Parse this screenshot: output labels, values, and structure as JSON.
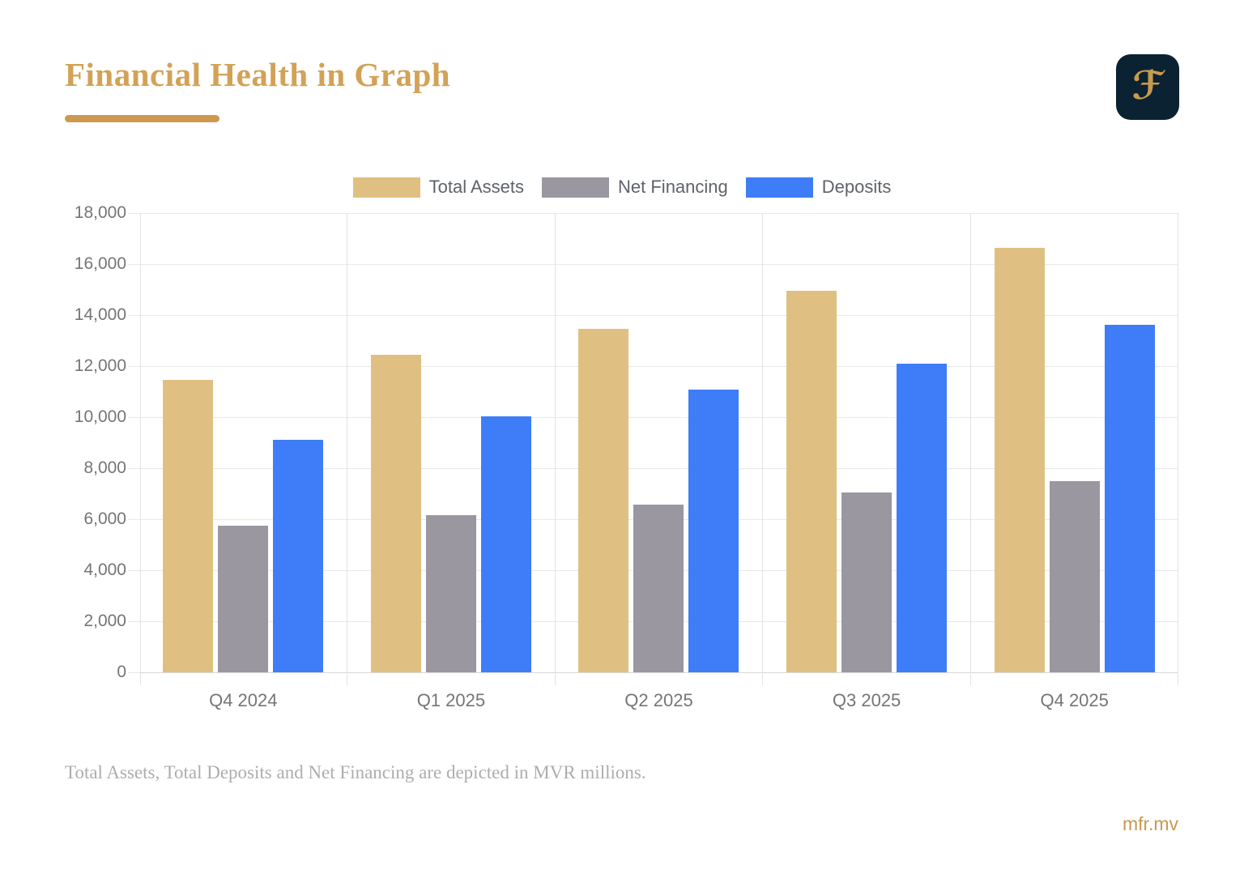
{
  "header": {
    "title": "Financial Health in Graph",
    "logo_letter": "ℱ"
  },
  "chart_data": {
    "type": "bar",
    "title": "",
    "categories": [
      "Q4 2024",
      "Q1 2025",
      "Q2 2025",
      "Q3 2025",
      "Q4 2025"
    ],
    "series": [
      {
        "name": "Total Assets",
        "color": "#E0C082",
        "values": [
          11450,
          12460,
          13450,
          14950,
          16620
        ]
      },
      {
        "name": "Net Financing",
        "color": "#9A97A1",
        "values": [
          5760,
          6150,
          6560,
          7060,
          7480
        ]
      },
      {
        "name": "Deposits",
        "color": "#3E7DF7",
        "values": [
          9110,
          10030,
          11080,
          12100,
          13620
        ]
      }
    ],
    "unit": "MVR millions",
    "ylim": [
      0,
      18000
    ],
    "y_tick_step": 2000,
    "y_tick_labels": [
      "0",
      "2,000",
      "4,000",
      "6,000",
      "8,000",
      "10,000",
      "12,000",
      "14,000",
      "16,000",
      "18,000"
    ],
    "grid": true,
    "legend_position": "top"
  },
  "footnote": "Total Assets, Total Deposits and Net Financing are depicted in MVR millions.",
  "footer": {
    "site": "mfr.mv"
  },
  "colors": {
    "title_gold": "#D2A257",
    "accent_bar": "#CD9950",
    "logo_bg": "#0B2232",
    "logo_letter": "#C89A4E",
    "axis_text": "#757575",
    "legend_text": "#5F6368",
    "footnote_text": "#ADADAD",
    "footer_link": "#C9984F",
    "gridline": "#E9E9E9",
    "baseline": "#D8D8D8",
    "grid_vertical": "#E2E2E2"
  }
}
